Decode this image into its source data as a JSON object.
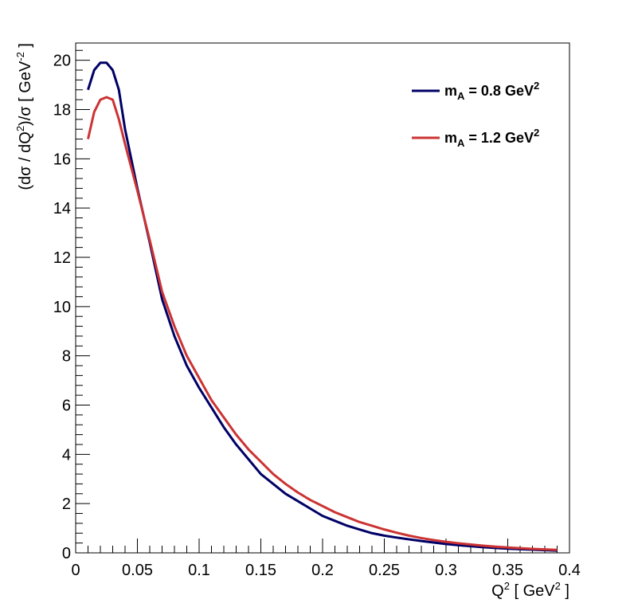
{
  "chart_data": {
    "type": "line",
    "xlim": [
      0,
      0.4
    ],
    "ylim": [
      0,
      20.7
    ],
    "x_ticks": [
      "0",
      "0.05",
      "0.1",
      "0.15",
      "0.2",
      "0.25",
      "0.3",
      "0.35",
      "0.4"
    ],
    "y_ticks": [
      "0",
      "2",
      "4",
      "6",
      "8",
      "10",
      "12",
      "14",
      "16",
      "18",
      "20"
    ],
    "grid": false,
    "legend_position": "top-right",
    "series": [
      {
        "name": "mA = 0.8 GeV2",
        "color": "#000066",
        "x": [
          0.01,
          0.015,
          0.02,
          0.025,
          0.03,
          0.035,
          0.04,
          0.05,
          0.06,
          0.07,
          0.08,
          0.09,
          0.1,
          0.11,
          0.12,
          0.13,
          0.14,
          0.15,
          0.16,
          0.17,
          0.18,
          0.19,
          0.2,
          0.21,
          0.22,
          0.23,
          0.24,
          0.25,
          0.26,
          0.27,
          0.28,
          0.29,
          0.3,
          0.31,
          0.32,
          0.33,
          0.34,
          0.35,
          0.36,
          0.37,
          0.38,
          0.39
        ],
        "y": [
          18.8,
          19.6,
          19.9,
          19.9,
          19.6,
          18.8,
          17.2,
          14.8,
          12.6,
          10.3,
          8.8,
          7.6,
          6.7,
          5.9,
          5.1,
          4.4,
          3.8,
          3.2,
          2.8,
          2.4,
          2.1,
          1.8,
          1.5,
          1.3,
          1.1,
          0.95,
          0.8,
          0.7,
          0.62,
          0.55,
          0.48,
          0.42,
          0.36,
          0.31,
          0.27,
          0.23,
          0.2,
          0.17,
          0.15,
          0.13,
          0.11,
          0.09
        ]
      },
      {
        "name": "mA = 1.2 GeV2",
        "color": "#cc3333",
        "x": [
          0.01,
          0.015,
          0.02,
          0.025,
          0.03,
          0.035,
          0.04,
          0.05,
          0.06,
          0.07,
          0.08,
          0.09,
          0.1,
          0.11,
          0.12,
          0.13,
          0.14,
          0.15,
          0.16,
          0.17,
          0.18,
          0.19,
          0.2,
          0.21,
          0.22,
          0.23,
          0.24,
          0.25,
          0.26,
          0.27,
          0.28,
          0.29,
          0.3,
          0.31,
          0.32,
          0.33,
          0.34,
          0.35,
          0.36,
          0.37,
          0.38,
          0.39
        ],
        "y": [
          16.8,
          17.9,
          18.4,
          18.5,
          18.4,
          17.6,
          16.6,
          14.7,
          12.7,
          10.6,
          9.2,
          8.0,
          7.1,
          6.2,
          5.5,
          4.8,
          4.2,
          3.7,
          3.2,
          2.8,
          2.45,
          2.15,
          1.9,
          1.65,
          1.45,
          1.25,
          1.1,
          0.95,
          0.82,
          0.7,
          0.6,
          0.52,
          0.45,
          0.39,
          0.34,
          0.29,
          0.25,
          0.22,
          0.19,
          0.16,
          0.14,
          0.12
        ]
      }
    ]
  }
}
